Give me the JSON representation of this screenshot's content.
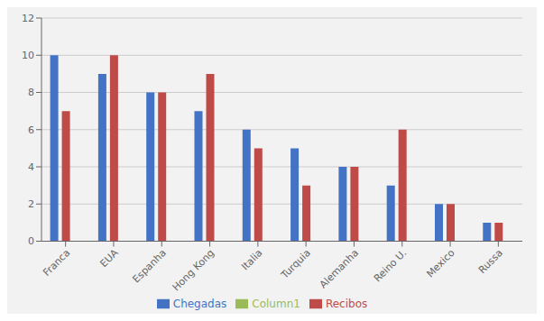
{
  "chart_data": {
    "type": "bar",
    "categories": [
      "Franca",
      "EUA",
      "Espanha",
      "Hong Kong",
      "Italia",
      "Turquia",
      "Alemanha",
      "Reino U.",
      "Mexico",
      "Russa"
    ],
    "series": [
      {
        "name": "Chegadas",
        "color": "#4472C4",
        "values": [
          10,
          9,
          8,
          7,
          6,
          5,
          4,
          3,
          2,
          1
        ]
      },
      {
        "name": "Recibos",
        "color": "#BE4B48",
        "values": [
          7,
          10,
          8,
          9,
          5,
          3,
          4,
          6,
          2,
          1
        ]
      },
      {
        "name": "Column1",
        "color": "#9BBB59",
        "values": [
          0,
          0,
          0,
          0,
          0,
          0,
          0,
          0,
          0,
          0
        ]
      }
    ],
    "ylim": [
      0,
      12
    ],
    "yticks": [
      0,
      2,
      4,
      6,
      8,
      10,
      12
    ],
    "grid": true,
    "legend": "bottom"
  }
}
